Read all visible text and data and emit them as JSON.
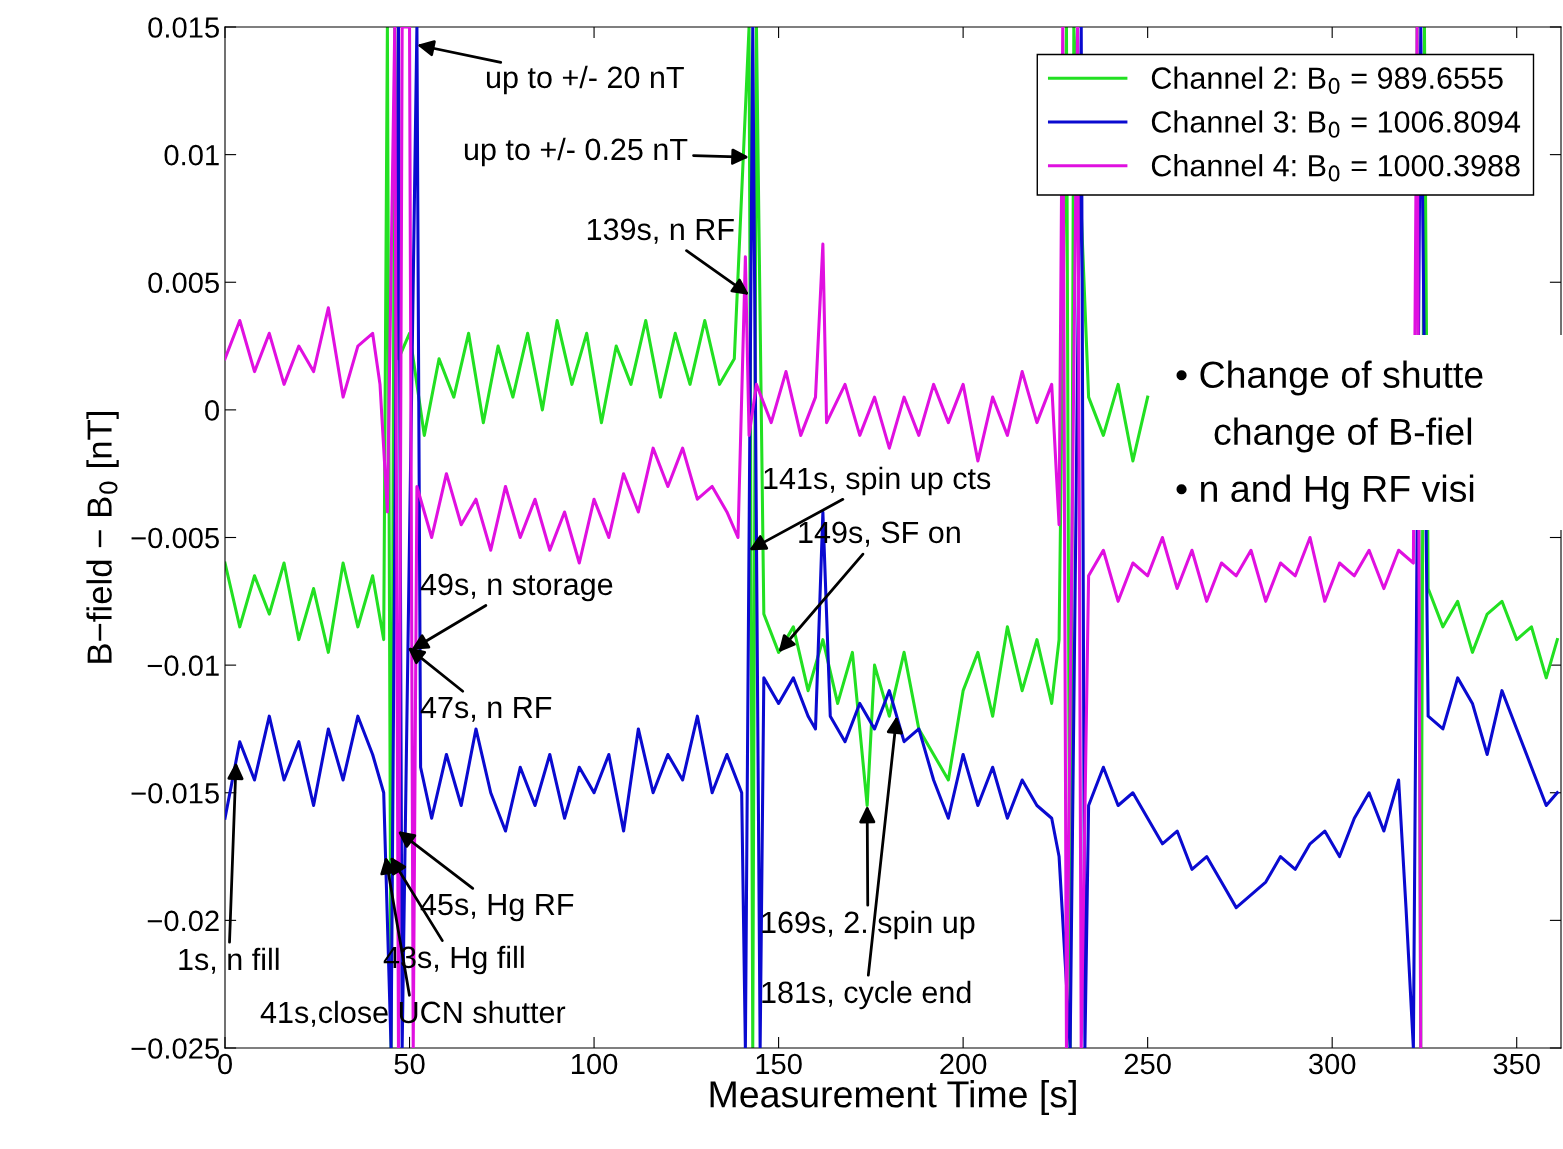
{
  "chart_data": {
    "type": "line",
    "xlabel": "Measurement Time [s]",
    "ylabel": "B−field − B$_{0}$ [nT]",
    "xlim": [
      0,
      362
    ],
    "xticks": [
      0,
      50,
      100,
      150,
      200,
      250,
      300,
      350
    ],
    "ylim": [
      -0.025,
      0.015
    ],
    "yticks": [
      {
        "value": -0.025,
        "label": "−0.025"
      },
      {
        "value": -0.02,
        "label": "−0.02"
      },
      {
        "value": -0.015,
        "label": "−0.015"
      },
      {
        "value": -0.01,
        "label": "−0.01"
      },
      {
        "value": -0.005,
        "label": "−0.005"
      },
      0,
      0.005,
      0.01,
      0.015
    ],
    "grid": false,
    "legend": "top right",
    "marker": "none",
    "line_style": "solid",
    "series": [
      {
        "name": "Channel 2: B$_{0}$ = 989.6555",
        "color": "#22e022",
        "x": [
          0,
          4,
          8,
          12,
          16,
          20,
          24,
          28,
          32,
          36,
          40,
          43,
          44,
          45,
          46,
          47,
          50,
          54,
          58,
          62,
          66,
          70,
          74,
          78,
          82,
          86,
          90,
          94,
          98,
          102,
          106,
          110,
          114,
          118,
          122,
          126,
          130,
          134,
          138,
          142,
          143,
          144,
          146,
          150,
          154,
          158,
          162,
          166,
          170,
          174,
          176,
          180,
          184,
          188,
          192,
          196,
          200,
          204,
          208,
          212,
          216,
          220,
          224,
          226,
          228,
          229,
          230,
          234,
          238,
          242,
          246,
          250,
          254,
          322,
          323,
          324,
          325,
          326,
          330,
          334,
          338,
          342,
          346,
          350,
          354,
          358,
          361
        ],
        "values": [
          -0.006,
          -0.0085,
          -0.0065,
          -0.008,
          -0.006,
          -0.009,
          -0.007,
          -0.0095,
          -0.006,
          -0.0085,
          -0.0065,
          -0.009,
          0.015,
          -0.025,
          0.015,
          0.002,
          0.003,
          -0.001,
          0.002,
          0.0005,
          0.003,
          -0.0005,
          0.0025,
          0.0005,
          0.003,
          0,
          0.0035,
          0.001,
          0.003,
          -0.0005,
          0.0025,
          0.001,
          0.0035,
          0.0005,
          0.003,
          0.001,
          0.0035,
          0.001,
          0.002,
          0.015,
          -0.025,
          0.015,
          -0.008,
          -0.0095,
          -0.0085,
          -0.011,
          -0.009,
          -0.0115,
          -0.0095,
          -0.0155,
          -0.01,
          -0.012,
          -0.0095,
          -0.0125,
          -0.0135,
          -0.0145,
          -0.011,
          -0.0095,
          -0.012,
          -0.0085,
          -0.011,
          -0.009,
          -0.0115,
          -0.009,
          0.015,
          -0.025,
          0.015,
          0.0005,
          -0.001,
          0.001,
          -0.002,
          0.0005,
          null,
          null,
          0.015,
          -0.025,
          0.015,
          -0.007,
          -0.0085,
          -0.0075,
          -0.0095,
          -0.008,
          -0.0075,
          -0.009,
          -0.0085,
          -0.0105,
          -0.009
        ]
      },
      {
        "name": "Channel 3: B$_{0}$ = 1006.8094",
        "color": "#0a0ad0",
        "x": [
          0,
          4,
          8,
          12,
          16,
          20,
          24,
          28,
          32,
          36,
          40,
          43,
          45,
          47,
          48,
          52,
          53,
          56,
          60,
          64,
          68,
          72,
          76,
          80,
          84,
          88,
          92,
          96,
          100,
          104,
          108,
          112,
          116,
          120,
          124,
          128,
          132,
          136,
          140,
          141,
          143,
          145,
          146,
          150,
          154,
          158,
          160,
          162,
          164,
          168,
          172,
          176,
          180,
          184,
          188,
          192,
          196,
          200,
          204,
          208,
          212,
          216,
          220,
          224,
          226,
          229,
          232,
          233,
          234,
          238,
          242,
          246,
          250,
          254,
          258,
          262,
          266,
          270,
          274,
          278,
          282,
          286,
          290,
          294,
          298,
          302,
          306,
          310,
          314,
          318,
          320,
          322,
          324,
          326,
          330,
          334,
          338,
          342,
          346,
          350,
          354,
          358,
          361
        ],
        "values": [
          -0.016,
          -0.013,
          -0.0145,
          -0.012,
          -0.0145,
          -0.013,
          -0.0155,
          -0.0125,
          -0.0145,
          -0.012,
          -0.0135,
          -0.015,
          -0.025,
          0.015,
          -0.025,
          0.015,
          -0.014,
          -0.016,
          -0.0135,
          -0.0155,
          -0.0125,
          -0.015,
          -0.0165,
          -0.014,
          -0.0155,
          -0.0135,
          -0.016,
          -0.014,
          -0.015,
          -0.0135,
          -0.0165,
          -0.0125,
          -0.015,
          -0.0135,
          -0.0145,
          -0.012,
          -0.015,
          -0.0135,
          -0.015,
          -0.025,
          0.015,
          -0.025,
          -0.0105,
          -0.0115,
          -0.0105,
          -0.012,
          -0.0125,
          -0.004,
          -0.012,
          -0.013,
          -0.0115,
          -0.0125,
          -0.011,
          -0.013,
          -0.0125,
          -0.0145,
          -0.016,
          -0.0135,
          -0.0155,
          -0.014,
          -0.016,
          -0.0145,
          -0.0155,
          -0.016,
          -0.0175,
          -0.025,
          0.015,
          -0.025,
          -0.0155,
          -0.014,
          -0.0155,
          -0.015,
          -0.016,
          -0.017,
          -0.0165,
          -0.018,
          -0.0175,
          -0.0185,
          -0.0195,
          -0.019,
          -0.0185,
          -0.0175,
          -0.018,
          -0.017,
          -0.0165,
          -0.0175,
          -0.016,
          -0.015,
          -0.0165,
          -0.0145,
          -0.0195,
          -0.025,
          0.015,
          -0.012,
          -0.0125,
          -0.0105,
          -0.0115,
          -0.0135,
          -0.011,
          -0.0125,
          -0.014,
          -0.0155,
          -0.015
        ]
      },
      {
        "name": "Channel 4: B$_{0}$ = 1000.3988",
        "color": "#e010e0",
        "x": [
          0,
          4,
          8,
          12,
          16,
          20,
          24,
          28,
          32,
          36,
          40,
          42,
          44,
          46,
          47,
          48,
          50,
          51,
          52,
          56,
          60,
          64,
          68,
          72,
          76,
          80,
          84,
          88,
          92,
          96,
          100,
          104,
          108,
          112,
          116,
          120,
          124,
          128,
          132,
          136,
          139,
          141,
          142,
          144,
          148,
          152,
          156,
          160,
          162,
          163,
          168,
          172,
          176,
          180,
          184,
          188,
          192,
          196,
          200,
          204,
          208,
          212,
          216,
          220,
          224,
          226,
          227,
          228,
          231,
          232,
          234,
          238,
          242,
          246,
          250,
          254,
          258,
          262,
          266,
          270,
          274,
          278,
          282,
          286,
          290,
          294,
          298,
          302,
          306,
          310,
          314,
          318,
          322,
          323,
          324
        ],
        "values": [
          0.002,
          0.0035,
          0.0015,
          0.003,
          0.001,
          0.0025,
          0.0015,
          0.004,
          0.0005,
          0.0025,
          0.003,
          0.001,
          -0.004,
          0.015,
          -0.025,
          0.015,
          0.015,
          -0.025,
          -0.003,
          -0.005,
          -0.0025,
          -0.0045,
          -0.0035,
          -0.0055,
          -0.003,
          -0.005,
          -0.0035,
          -0.0055,
          -0.004,
          -0.006,
          -0.0035,
          -0.005,
          -0.0025,
          -0.004,
          -0.0015,
          -0.003,
          -0.0015,
          -0.0035,
          -0.003,
          -0.004,
          -0.005,
          0.006,
          -0.001,
          0.001,
          -0.0005,
          0.0015,
          -0.001,
          0.0005,
          0.0065,
          -0.0005,
          0.001,
          -0.001,
          0.0005,
          -0.0015,
          0.0005,
          -0.001,
          0.001,
          -0.0005,
          0.001,
          -0.002,
          0.0005,
          -0.001,
          0.0015,
          -0.0005,
          0.001,
          -0.0045,
          0.015,
          -0.025,
          0.015,
          -0.025,
          -0.0065,
          -0.0055,
          -0.0075,
          -0.006,
          -0.0065,
          -0.005,
          -0.007,
          -0.0055,
          -0.0075,
          -0.006,
          -0.0065,
          -0.0055,
          -0.0075,
          -0.006,
          -0.0065,
          -0.005,
          -0.0075,
          -0.006,
          -0.0065,
          -0.0055,
          -0.007,
          -0.0055,
          -0.006,
          0.015,
          -0.025
        ]
      }
    ],
    "annotations": [
      {
        "text": "up to +/- 20 nT",
        "x": 52,
        "y": 0.0143
      },
      {
        "text": "up to +/- 0.25 nT",
        "x": 142,
        "y": 0.0099
      },
      {
        "text": "139s, n RF",
        "x": 142,
        "y": 0.0045
      },
      {
        "text": "141s, spin up cts",
        "x": 142,
        "y": -0.0055
      },
      {
        "text": "149s, SF on",
        "x": 150,
        "y": -0.0095
      },
      {
        "text": "49s, n storage",
        "x": 50.5,
        "y": -0.0094
      },
      {
        "text": "47s, n RF",
        "x": 49.5,
        "y": -0.0093
      },
      {
        "text": "45s, Hg RF",
        "x": 46.8,
        "y": -0.0165
      },
      {
        "text": "43s, Hg fill",
        "x": 44.8,
        "y": -0.0175
      },
      {
        "text": "41s,close UCN shutter",
        "x": 43.5,
        "y": -0.0175
      },
      {
        "text": "1s, n fill",
        "x": 3,
        "y": -0.0138
      },
      {
        "text": "169s, 2. spin up",
        "x": 174,
        "y": -0.0155
      },
      {
        "text": "181s, cycle end",
        "x": 182,
        "y": -0.012
      },
      "• Change of shutte",
      "change of B-fiel",
      "• n and Hg RF visi"
    ]
  }
}
